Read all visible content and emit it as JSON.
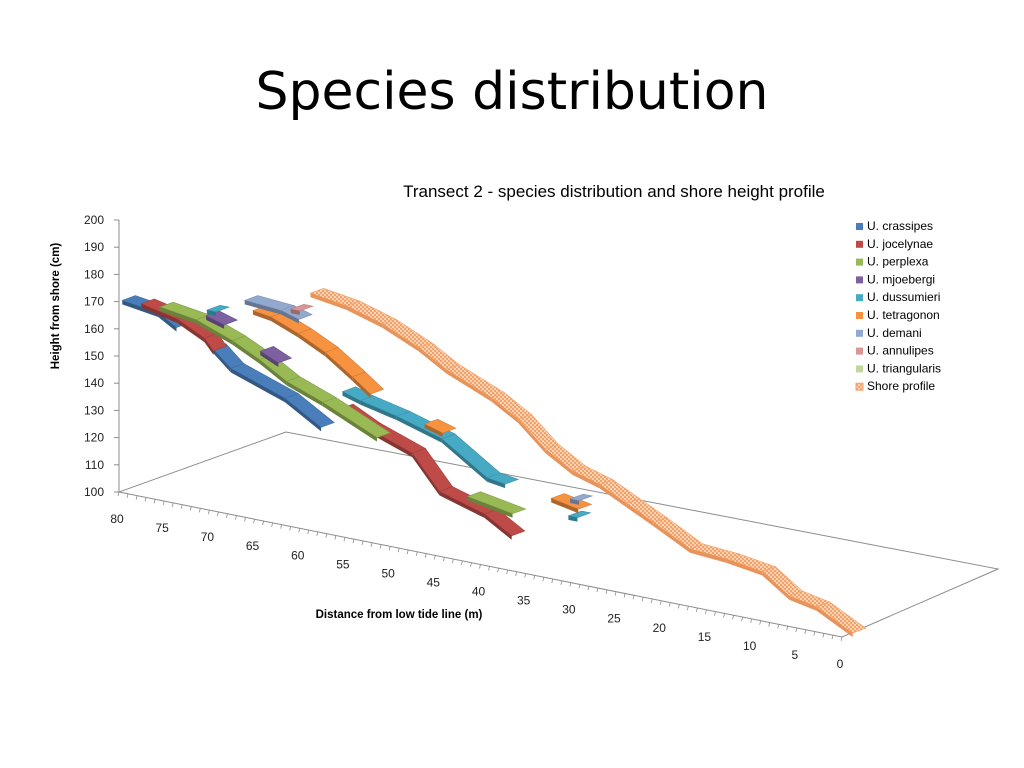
{
  "slide": {
    "title": "Species distribution"
  },
  "chart_data": {
    "type": "line",
    "subtype": "3d-line",
    "title": "Transect 2 - species distribution and shore height profile",
    "xlabel": "Distance from low tide line (m)",
    "ylabel": "Height from shore (cm)",
    "ylim": [
      100,
      200
    ],
    "yticks": [
      "100",
      "110",
      "120",
      "130",
      "140",
      "150",
      "160",
      "170",
      "180",
      "190",
      "200"
    ],
    "xlim": [
      80,
      0
    ],
    "xticks": [
      "80",
      "75",
      "70",
      "65",
      "60",
      "55",
      "50",
      "45",
      "40",
      "35",
      "30",
      "25",
      "20",
      "15",
      "10",
      "5",
      "0"
    ],
    "legend_position": "right",
    "series": [
      {
        "name": "U. crassipes",
        "color": "#4a7ebb",
        "segments": [
          [
            [
              80,
              170
            ],
            [
              76,
              168
            ],
            [
              74,
              164
            ]
          ],
          [
            [
              70,
              159
            ],
            [
              68,
              153
            ],
            [
              62,
              146
            ],
            [
              58,
              138
            ]
          ]
        ]
      },
      {
        "name": "U. jocelynae",
        "color": "#be4b48",
        "segments": [
          [
            [
              78,
              170
            ],
            [
              74,
              167
            ],
            [
              71,
              162
            ],
            [
              70,
              158
            ]
          ],
          [
            [
              56,
              146
            ],
            [
              53,
              141
            ],
            [
              48,
              135
            ],
            [
              45,
              123
            ],
            [
              40,
              118
            ],
            [
              37,
              112
            ]
          ]
        ]
      },
      {
        "name": "U. perplexa",
        "color": "#98b954",
        "segments": [
          [
            [
              76,
              170
            ],
            [
              72,
              168
            ],
            [
              68,
              163
            ],
            [
              65,
              158
            ],
            [
              62,
              152
            ],
            [
              58,
              147
            ],
            [
              52,
              138
            ]
          ],
          [
            [
              42,
              123
            ],
            [
              37,
              120
            ]
          ]
        ]
      },
      {
        "name": "U. mjoebergi",
        "color": "#7d60a0",
        "segments": [
          [
            [
              71,
              170
            ],
            [
              69,
              168
            ]
          ],
          [
            [
              65,
              161
            ],
            [
              63,
              158
            ]
          ]
        ]
      },
      {
        "name": "U. dussumieri",
        "color": "#46aac5",
        "segments": [
          [
            [
              71,
              172
            ],
            [
              70,
              172
            ]
          ],
          [
            [
              56,
              152
            ],
            [
              54,
              150
            ],
            [
              50,
              147
            ],
            [
              45,
              142
            ],
            [
              40,
              131
            ],
            [
              38,
              130
            ]
          ],
          [
            [
              31,
              123
            ],
            [
              30,
              123
            ]
          ]
        ]
      },
      {
        "name": "U. tetragonon",
        "color": "#f69240",
        "segments": [
          [
            [
              66,
              175
            ],
            [
              64,
              174
            ],
            [
              61,
              170
            ],
            [
              58,
              165
            ],
            [
              55,
              158
            ],
            [
              53,
              153
            ]
          ],
          [
            [
              47,
              146
            ],
            [
              45,
              144
            ]
          ],
          [
            [
              33,
              128
            ],
            [
              30,
              126
            ]
          ]
        ]
      },
      {
        "name": "U. demani",
        "color": "#92a9cf",
        "segments": [
          [
            [
              67,
              178
            ],
            [
              63,
              177
            ],
            [
              61,
              175
            ]
          ],
          [
            [
              31,
              129
            ],
            [
              30,
              129
            ]
          ]
        ]
      },
      {
        "name": "U. annulipes",
        "color": "#d99694",
        "segments": [
          [
            [
              62,
              178
            ],
            [
              61,
              178
            ]
          ]
        ]
      },
      {
        "name": "U. triangularis",
        "color": "#c3d69b",
        "segments": []
      },
      {
        "name": "Shore profile",
        "color": "#f9b88a",
        "pattern": "checkered",
        "segments": [
          [
            [
              60,
              185
            ],
            [
              56,
              183
            ],
            [
              52,
              179
            ],
            [
              48,
              173
            ],
            [
              45,
              167
            ],
            [
              40,
              160
            ],
            [
              37,
              154
            ],
            [
              34,
              145
            ],
            [
              31,
              139
            ],
            [
              28,
              136
            ],
            [
              25,
              131
            ],
            [
              22,
              126
            ],
            [
              18,
              119
            ],
            [
              14,
              118
            ],
            [
              10,
              116
            ],
            [
              7,
              109
            ],
            [
              4,
              107
            ],
            [
              0,
              100
            ]
          ]
        ]
      }
    ]
  }
}
